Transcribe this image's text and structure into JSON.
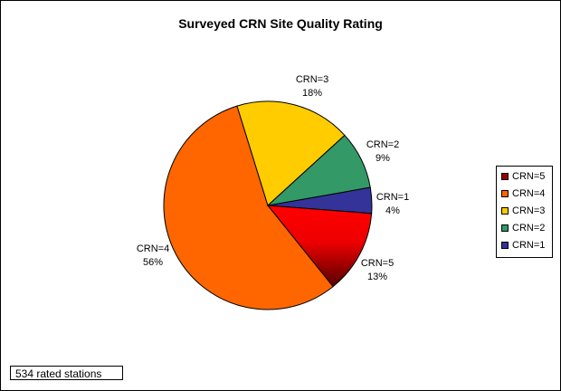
{
  "chart_data": {
    "type": "pie",
    "title": "Surveyed CRN Site Quality Rating",
    "slices": [
      {
        "label": "CRN=1",
        "value": 4,
        "percent_label": "4%",
        "color": "#333399"
      },
      {
        "label": "CRN=5",
        "value": 13,
        "percent_label": "13%",
        "color": "#ff0000"
      },
      {
        "label": "CRN=4",
        "value": 56,
        "percent_label": "56%",
        "color": "#ff6600"
      },
      {
        "label": "CRN=3",
        "value": 18,
        "percent_label": "18%",
        "color": "#ffcc00"
      },
      {
        "label": "CRN=2",
        "value": 9,
        "percent_label": "9%",
        "color": "#339966"
      }
    ],
    "legend": {
      "placement": "right",
      "entries": [
        "CRN=5",
        "CRN=4",
        "CRN=3",
        "CRN=2",
        "CRN=1"
      ],
      "colors": [
        "#990000",
        "#ff6600",
        "#ffcc00",
        "#339966",
        "#333399"
      ]
    },
    "annotation": "534 rated stations"
  }
}
